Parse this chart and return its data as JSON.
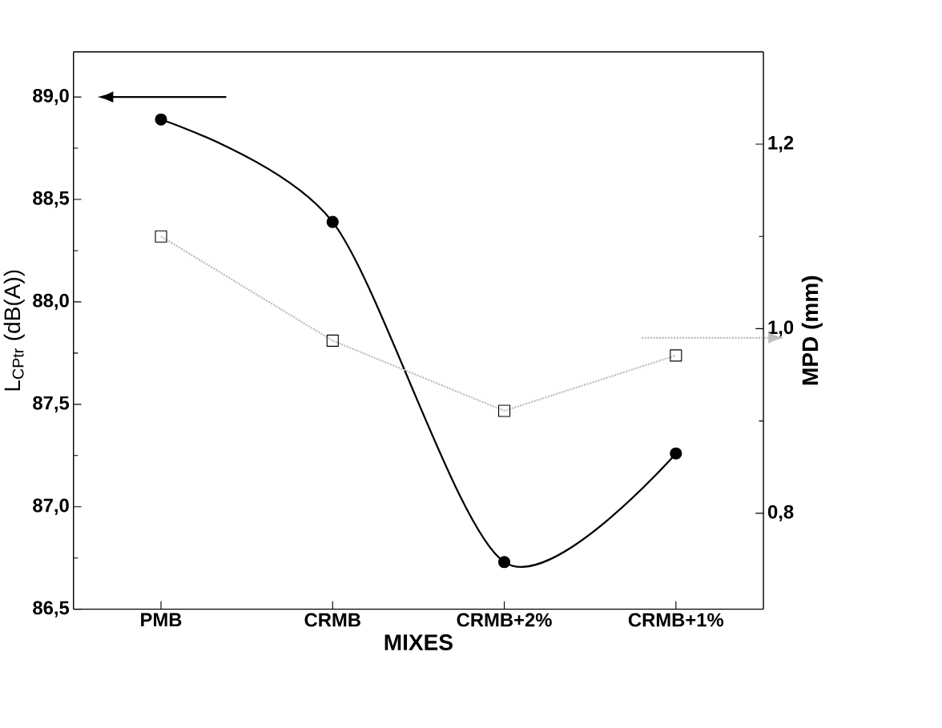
{
  "chart_data": {
    "type": "line",
    "xlabel": "MIXES",
    "ylabel": "L$_{CPtr}$ (dB(A))",
    "y2label": "MPD (mm)",
    "categories": [
      "PMB",
      "CRMB",
      "CRMB+2%",
      "CRMB+1%"
    ],
    "series": [
      {
        "color": "#000000",
        "values": [
          88.89,
          88.39,
          86.73,
          87.26
        ],
        "marker": "circle",
        "line_style": "solid"
      },
      {
        "color": "#000000",
        "values": [
          1.1,
          0.987,
          0.911,
          0.971
        ],
        "marker": "square",
        "line_style": "dotted",
        "axis": "y2"
      }
    ],
    "ylim": [
      86.5,
      89.22
    ],
    "yticks": [
      {
        "value": 86.5,
        "label": "86,5"
      },
      {
        "value": 87.0,
        "label": "87,0"
      },
      {
        "value": 87.5,
        "label": "87,5"
      },
      {
        "value": 88.0,
        "label": "88,0"
      },
      {
        "value": 88.5,
        "label": "88,5"
      },
      {
        "value": 89.0,
        "label": "89,0"
      }
    ],
    "y2lim": [
      0.696,
      1.3
    ],
    "y2ticks": [
      {
        "value": 0.8,
        "label": "0,8"
      },
      {
        "value": 1.0,
        "label": "1,0"
      },
      {
        "value": 1.2,
        "label": "1,2"
      }
    ],
    "grid": false
  }
}
